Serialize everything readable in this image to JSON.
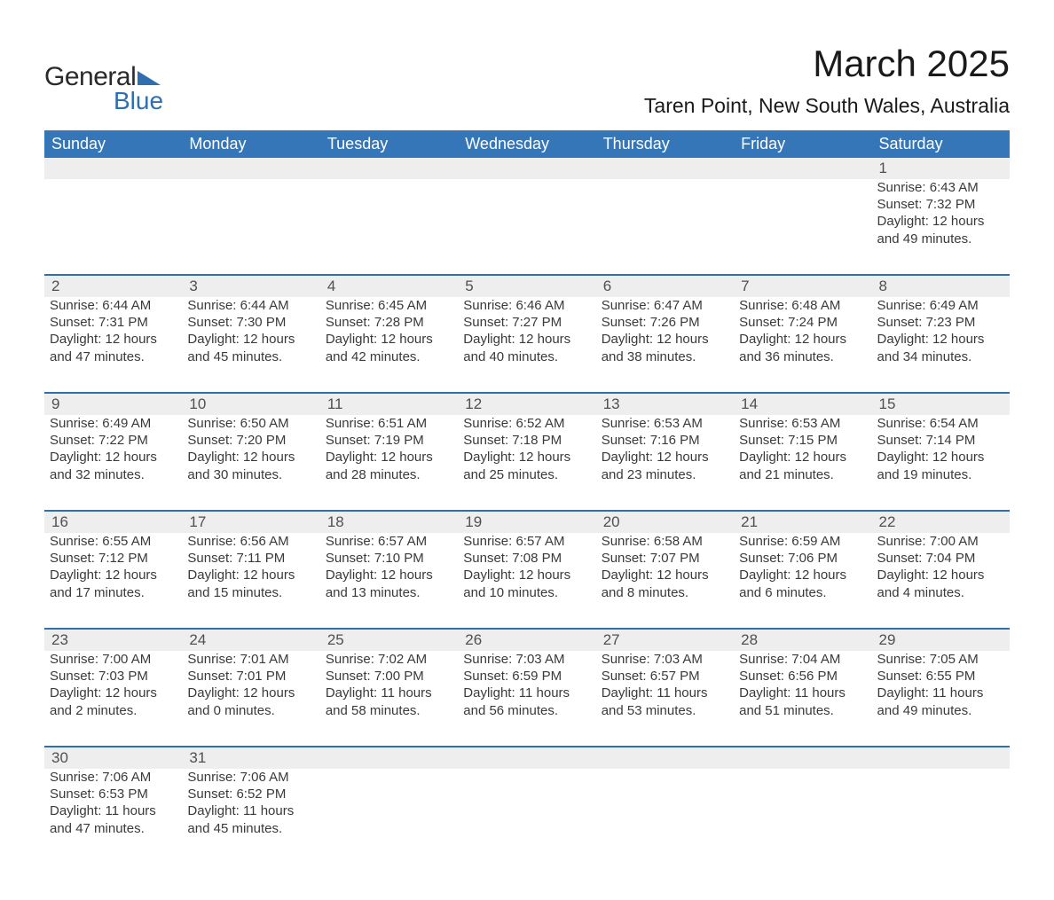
{
  "logo": {
    "text1": "General",
    "text2": "Blue",
    "brand_color": "#2f6fb0"
  },
  "header": {
    "month_title": "March 2025",
    "location": "Taren Point, New South Wales, Australia"
  },
  "calendar": {
    "header_bg": "#3576b8",
    "header_fg": "#ffffff",
    "daynum_bg": "#eeeeee",
    "row_border": "#2f6fb0",
    "text_color": "#3a3a3a",
    "columns": [
      "Sunday",
      "Monday",
      "Tuesday",
      "Wednesday",
      "Thursday",
      "Friday",
      "Saturday"
    ],
    "weeks": [
      [
        null,
        null,
        null,
        null,
        null,
        null,
        {
          "n": "1",
          "sr": "Sunrise: 6:43 AM",
          "ss": "Sunset: 7:32 PM",
          "d1": "Daylight: 12 hours",
          "d2": "and 49 minutes."
        }
      ],
      [
        {
          "n": "2",
          "sr": "Sunrise: 6:44 AM",
          "ss": "Sunset: 7:31 PM",
          "d1": "Daylight: 12 hours",
          "d2": "and 47 minutes."
        },
        {
          "n": "3",
          "sr": "Sunrise: 6:44 AM",
          "ss": "Sunset: 7:30 PM",
          "d1": "Daylight: 12 hours",
          "d2": "and 45 minutes."
        },
        {
          "n": "4",
          "sr": "Sunrise: 6:45 AM",
          "ss": "Sunset: 7:28 PM",
          "d1": "Daylight: 12 hours",
          "d2": "and 42 minutes."
        },
        {
          "n": "5",
          "sr": "Sunrise: 6:46 AM",
          "ss": "Sunset: 7:27 PM",
          "d1": "Daylight: 12 hours",
          "d2": "and 40 minutes."
        },
        {
          "n": "6",
          "sr": "Sunrise: 6:47 AM",
          "ss": "Sunset: 7:26 PM",
          "d1": "Daylight: 12 hours",
          "d2": "and 38 minutes."
        },
        {
          "n": "7",
          "sr": "Sunrise: 6:48 AM",
          "ss": "Sunset: 7:24 PM",
          "d1": "Daylight: 12 hours",
          "d2": "and 36 minutes."
        },
        {
          "n": "8",
          "sr": "Sunrise: 6:49 AM",
          "ss": "Sunset: 7:23 PM",
          "d1": "Daylight: 12 hours",
          "d2": "and 34 minutes."
        }
      ],
      [
        {
          "n": "9",
          "sr": "Sunrise: 6:49 AM",
          "ss": "Sunset: 7:22 PM",
          "d1": "Daylight: 12 hours",
          "d2": "and 32 minutes."
        },
        {
          "n": "10",
          "sr": "Sunrise: 6:50 AM",
          "ss": "Sunset: 7:20 PM",
          "d1": "Daylight: 12 hours",
          "d2": "and 30 minutes."
        },
        {
          "n": "11",
          "sr": "Sunrise: 6:51 AM",
          "ss": "Sunset: 7:19 PM",
          "d1": "Daylight: 12 hours",
          "d2": "and 28 minutes."
        },
        {
          "n": "12",
          "sr": "Sunrise: 6:52 AM",
          "ss": "Sunset: 7:18 PM",
          "d1": "Daylight: 12 hours",
          "d2": "and 25 minutes."
        },
        {
          "n": "13",
          "sr": "Sunrise: 6:53 AM",
          "ss": "Sunset: 7:16 PM",
          "d1": "Daylight: 12 hours",
          "d2": "and 23 minutes."
        },
        {
          "n": "14",
          "sr": "Sunrise: 6:53 AM",
          "ss": "Sunset: 7:15 PM",
          "d1": "Daylight: 12 hours",
          "d2": "and 21 minutes."
        },
        {
          "n": "15",
          "sr": "Sunrise: 6:54 AM",
          "ss": "Sunset: 7:14 PM",
          "d1": "Daylight: 12 hours",
          "d2": "and 19 minutes."
        }
      ],
      [
        {
          "n": "16",
          "sr": "Sunrise: 6:55 AM",
          "ss": "Sunset: 7:12 PM",
          "d1": "Daylight: 12 hours",
          "d2": "and 17 minutes."
        },
        {
          "n": "17",
          "sr": "Sunrise: 6:56 AM",
          "ss": "Sunset: 7:11 PM",
          "d1": "Daylight: 12 hours",
          "d2": "and 15 minutes."
        },
        {
          "n": "18",
          "sr": "Sunrise: 6:57 AM",
          "ss": "Sunset: 7:10 PM",
          "d1": "Daylight: 12 hours",
          "d2": "and 13 minutes."
        },
        {
          "n": "19",
          "sr": "Sunrise: 6:57 AM",
          "ss": "Sunset: 7:08 PM",
          "d1": "Daylight: 12 hours",
          "d2": "and 10 minutes."
        },
        {
          "n": "20",
          "sr": "Sunrise: 6:58 AM",
          "ss": "Sunset: 7:07 PM",
          "d1": "Daylight: 12 hours",
          "d2": "and 8 minutes."
        },
        {
          "n": "21",
          "sr": "Sunrise: 6:59 AM",
          "ss": "Sunset: 7:06 PM",
          "d1": "Daylight: 12 hours",
          "d2": "and 6 minutes."
        },
        {
          "n": "22",
          "sr": "Sunrise: 7:00 AM",
          "ss": "Sunset: 7:04 PM",
          "d1": "Daylight: 12 hours",
          "d2": "and 4 minutes."
        }
      ],
      [
        {
          "n": "23",
          "sr": "Sunrise: 7:00 AM",
          "ss": "Sunset: 7:03 PM",
          "d1": "Daylight: 12 hours",
          "d2": "and 2 minutes."
        },
        {
          "n": "24",
          "sr": "Sunrise: 7:01 AM",
          "ss": "Sunset: 7:01 PM",
          "d1": "Daylight: 12 hours",
          "d2": "and 0 minutes."
        },
        {
          "n": "25",
          "sr": "Sunrise: 7:02 AM",
          "ss": "Sunset: 7:00 PM",
          "d1": "Daylight: 11 hours",
          "d2": "and 58 minutes."
        },
        {
          "n": "26",
          "sr": "Sunrise: 7:03 AM",
          "ss": "Sunset: 6:59 PM",
          "d1": "Daylight: 11 hours",
          "d2": "and 56 minutes."
        },
        {
          "n": "27",
          "sr": "Sunrise: 7:03 AM",
          "ss": "Sunset: 6:57 PM",
          "d1": "Daylight: 11 hours",
          "d2": "and 53 minutes."
        },
        {
          "n": "28",
          "sr": "Sunrise: 7:04 AM",
          "ss": "Sunset: 6:56 PM",
          "d1": "Daylight: 11 hours",
          "d2": "and 51 minutes."
        },
        {
          "n": "29",
          "sr": "Sunrise: 7:05 AM",
          "ss": "Sunset: 6:55 PM",
          "d1": "Daylight: 11 hours",
          "d2": "and 49 minutes."
        }
      ],
      [
        {
          "n": "30",
          "sr": "Sunrise: 7:06 AM",
          "ss": "Sunset: 6:53 PM",
          "d1": "Daylight: 11 hours",
          "d2": "and 47 minutes."
        },
        {
          "n": "31",
          "sr": "Sunrise: 7:06 AM",
          "ss": "Sunset: 6:52 PM",
          "d1": "Daylight: 11 hours",
          "d2": "and 45 minutes."
        },
        null,
        null,
        null,
        null,
        null
      ]
    ]
  }
}
